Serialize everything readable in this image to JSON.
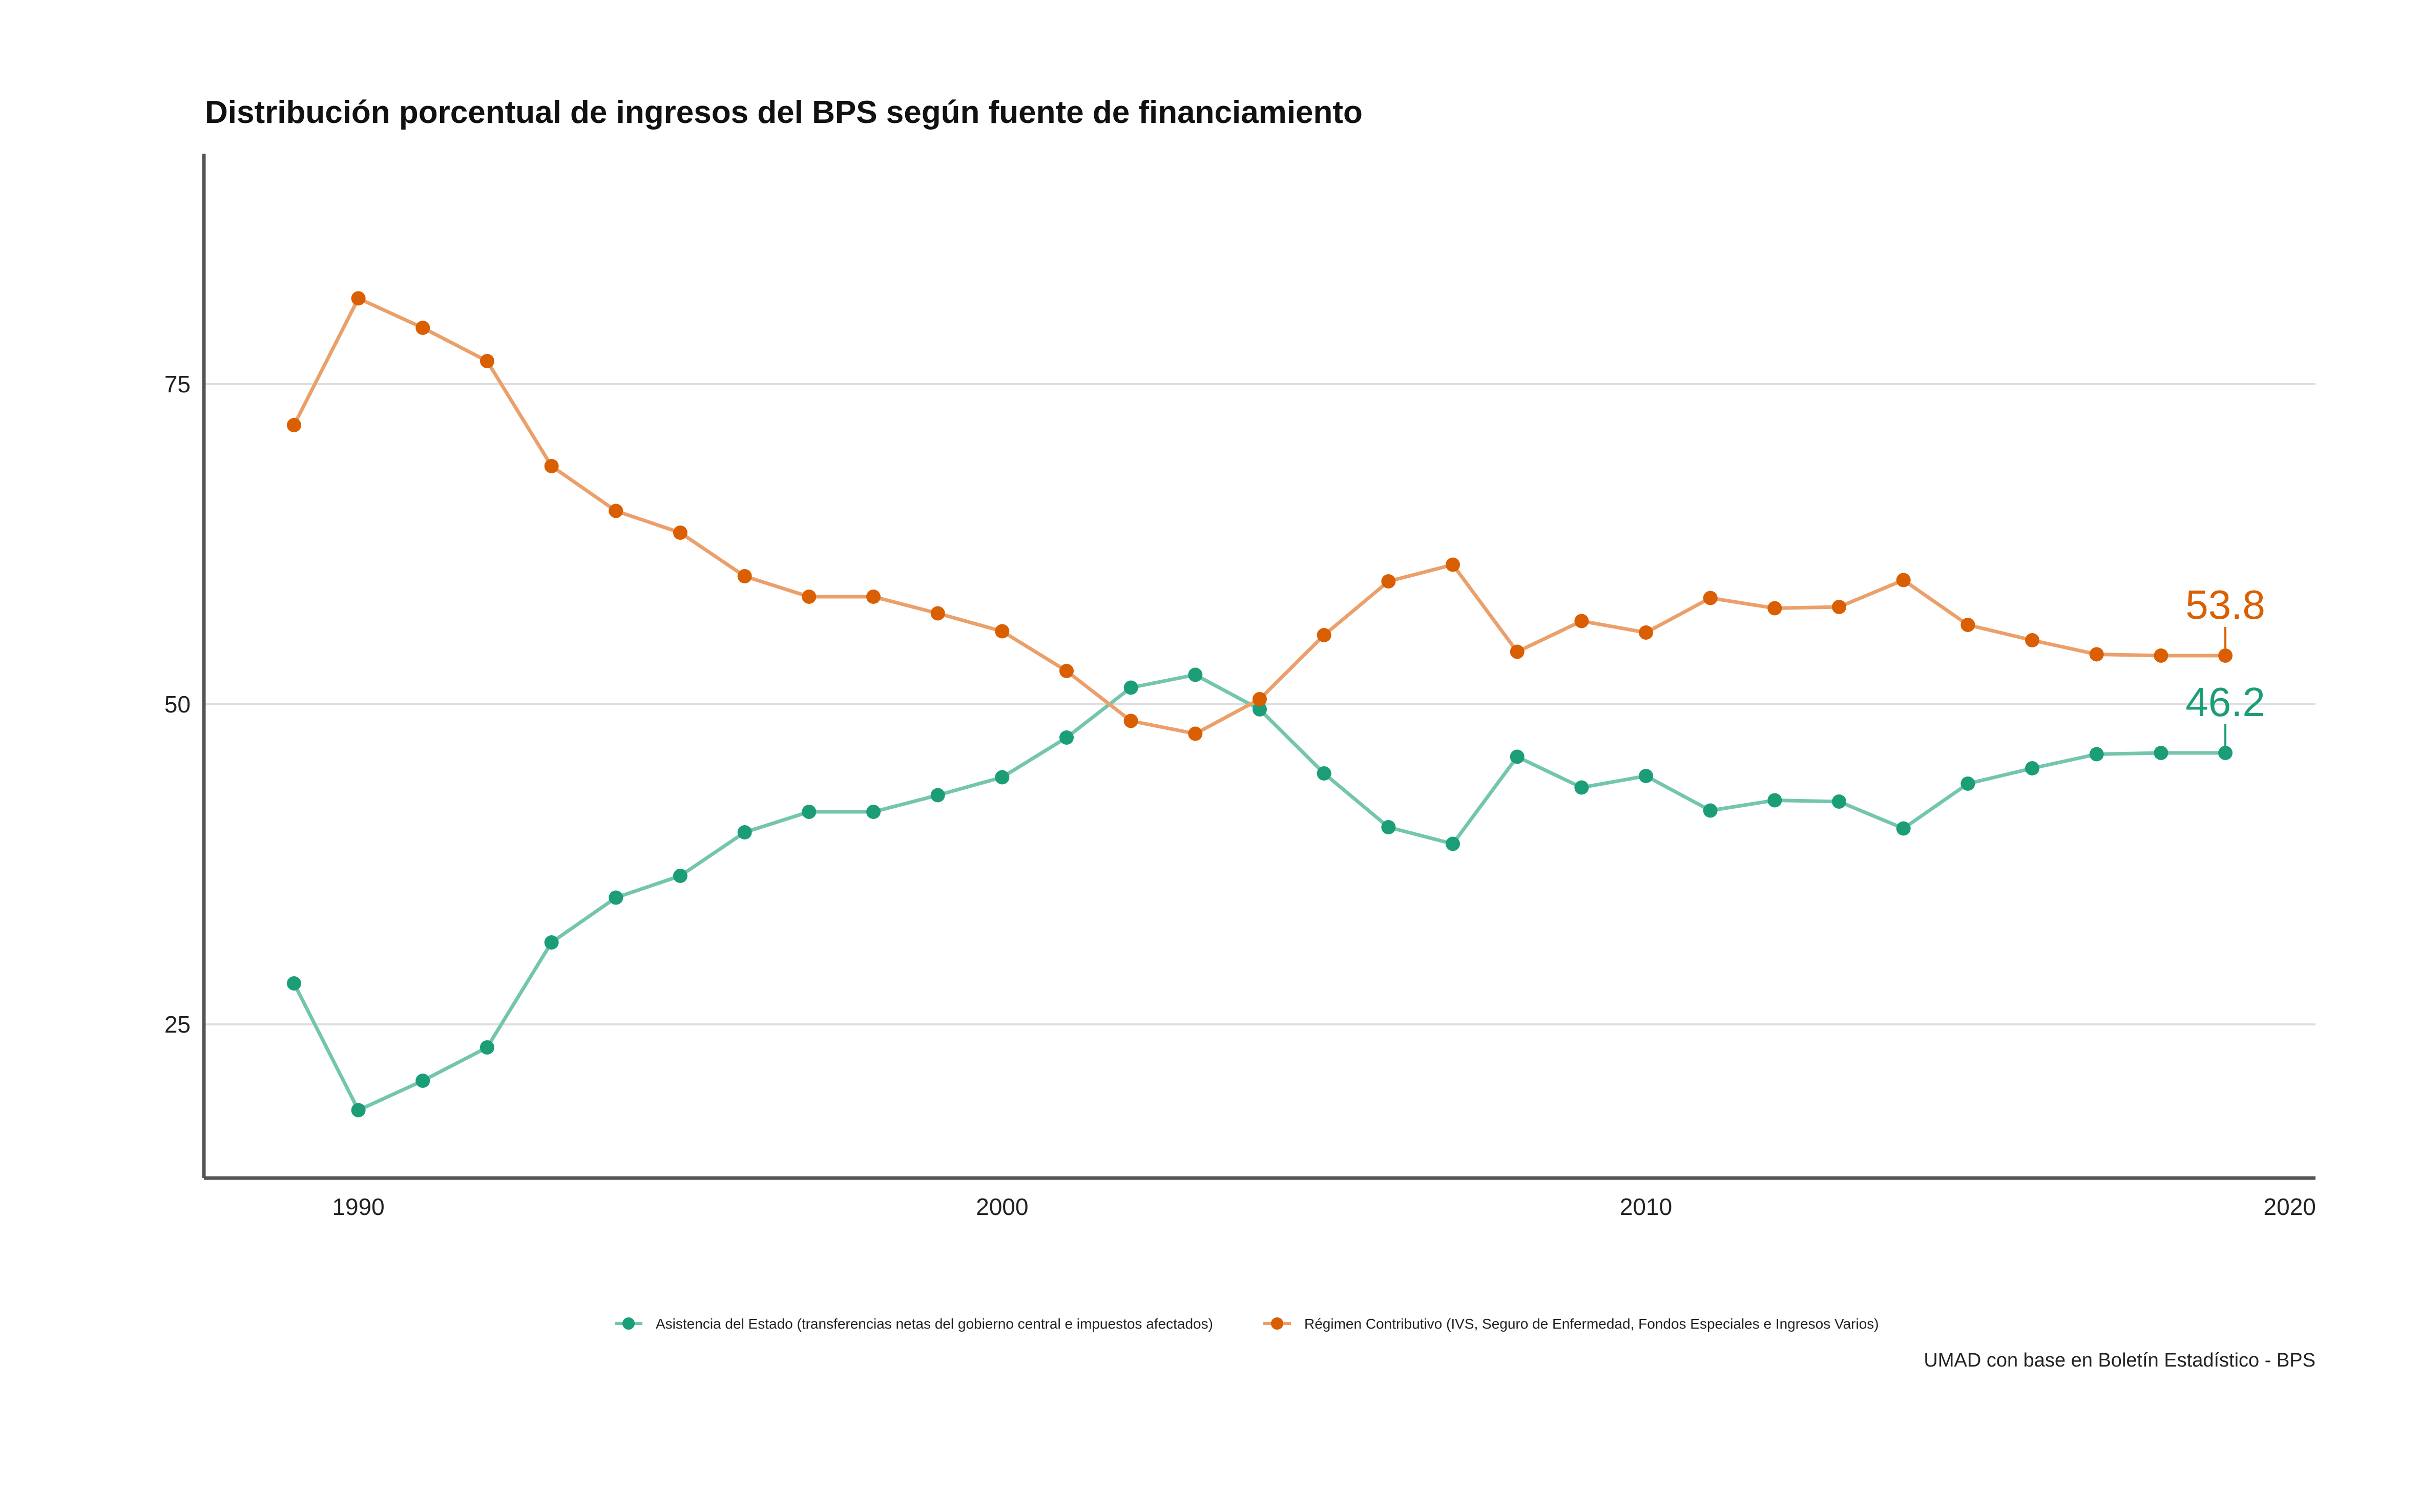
{
  "chart_data": {
    "type": "line",
    "title": "Distribución porcentual de ingresos del BPS según fuente de financiamiento",
    "xlabel": "",
    "ylabel": "",
    "caption": "UMAD con base en Boletín Estadístico - BPS",
    "xlim": [
      1987.6,
      2020.4
    ],
    "ylim": [
      13,
      93
    ],
    "x_ticks": [
      1990,
      2000,
      2010,
      2020
    ],
    "y_ticks": [
      25,
      50,
      75
    ],
    "grid": "horizontal major",
    "legend_position": "bottom",
    "x": [
      1989,
      1990,
      1991,
      1992,
      1993,
      1994,
      1995,
      1996,
      1997,
      1998,
      1999,
      2000,
      2001,
      2002,
      2003,
      2004,
      2005,
      2006,
      2007,
      2008,
      2009,
      2010,
      2011,
      2012,
      2013,
      2014,
      2015,
      2016,
      2017,
      2018,
      2019
    ],
    "series": [
      {
        "name": "Asistencia del Estado (transferencias netas del gobierno central e impuestos afectados)",
        "color": "#1b9e77",
        "line_color": "#73c6ad",
        "values": [
          28.2,
          18.3,
          20.6,
          23.2,
          31.4,
          34.9,
          36.6,
          40.0,
          41.6,
          41.6,
          42.9,
          44.3,
          47.4,
          51.3,
          52.3,
          49.6,
          44.6,
          40.4,
          39.1,
          45.9,
          43.5,
          44.4,
          41.7,
          42.5,
          42.4,
          40.3,
          43.8,
          45.0,
          46.1,
          46.2,
          46.2
        ],
        "end_label": "46.2"
      },
      {
        "name": "Régimen Contributivo (IVS, Seguro de Enfermedad, Fondos Especiales e Ingresos Varios)",
        "color": "#d95f02",
        "line_color": "#eba06b",
        "values": [
          71.8,
          81.7,
          79.4,
          76.8,
          68.6,
          65.1,
          63.4,
          60.0,
          58.4,
          58.4,
          57.1,
          55.7,
          52.6,
          48.7,
          47.7,
          50.4,
          55.4,
          59.6,
          60.9,
          54.1,
          56.5,
          55.6,
          58.3,
          57.5,
          57.6,
          59.7,
          56.2,
          55.0,
          53.9,
          53.8,
          53.8
        ],
        "end_label": "53.8"
      }
    ]
  }
}
